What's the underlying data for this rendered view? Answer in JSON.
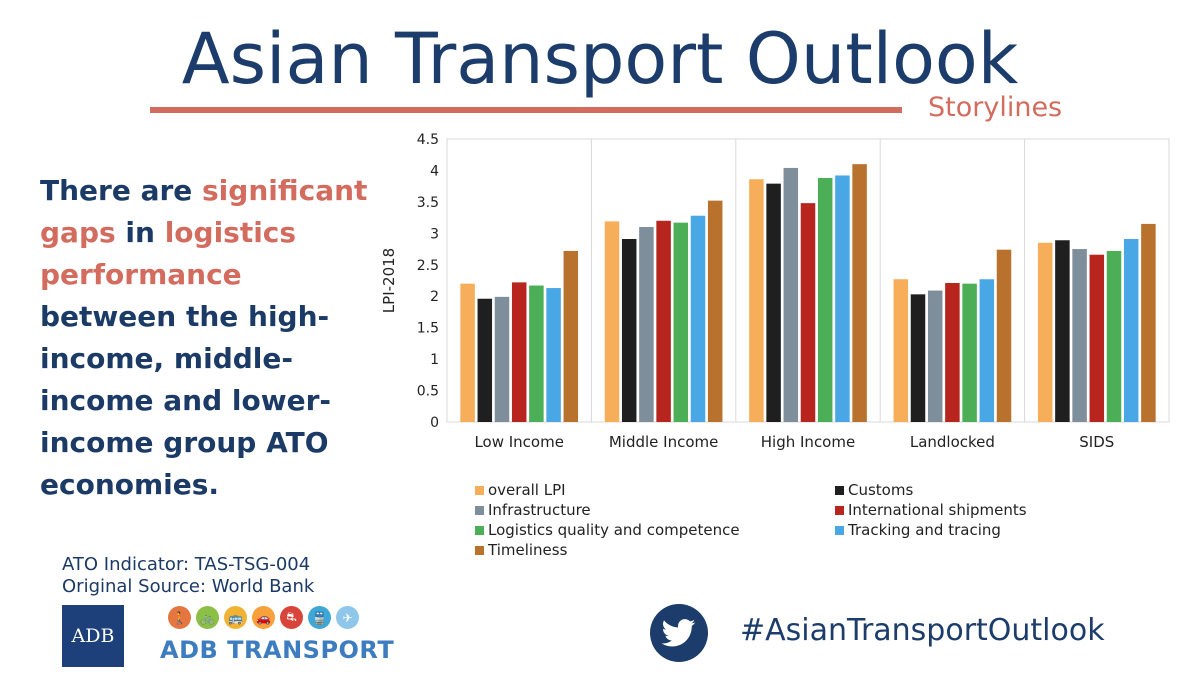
{
  "header": {
    "title": "Asian Transport Outlook",
    "subtitle": "Storylines"
  },
  "statement": {
    "p1": "There are ",
    "h1": "significant gaps",
    "p2": " in ",
    "h2": "logistics performance",
    "p3": " between the high-income, middle-income and lower-income group ATO economies."
  },
  "source": {
    "indicator": "ATO Indicator: TAS-TSG-004",
    "origin": "Original Source: World Bank"
  },
  "logos": {
    "adb": "ADB",
    "adb_transport": "ADB TRANSPORT",
    "mode_icons": [
      {
        "icon": "walk-icon",
        "color": "#e6763f"
      },
      {
        "icon": "bicycle-icon",
        "color": "#8bbf45"
      },
      {
        "icon": "bus-icon",
        "color": "#f2b234"
      },
      {
        "icon": "car-icon",
        "color": "#f6a13c"
      },
      {
        "icon": "road-icon",
        "color": "#d9443a"
      },
      {
        "icon": "train-icon",
        "color": "#3ea7d6"
      },
      {
        "icon": "plane-icon",
        "color": "#8ec7ea"
      }
    ]
  },
  "footer": {
    "hashtag": "#AsianTransportOutlook",
    "twitter_icon": "twitter-bird-icon"
  },
  "chart_data": {
    "type": "bar",
    "title": "",
    "xlabel": "",
    "ylabel": "LPI-2018",
    "ylim": [
      0,
      4.5
    ],
    "yticks": [
      "0",
      "0.5",
      "1",
      "1.5",
      "2",
      "2.5",
      "3",
      "3.5",
      "4",
      "4.5"
    ],
    "grid": "vertical category separators",
    "legend_position": "bottom",
    "categories": [
      "Low Income",
      "Middle Income",
      "High Income",
      "Landlocked",
      "SIDS"
    ],
    "series": [
      {
        "name": "overall LPI",
        "color": "#f6ae5a",
        "values": [
          2.2,
          3.19,
          3.86,
          2.27,
          2.85
        ]
      },
      {
        "name": "Customs",
        "color": "#1f1f1f",
        "values": [
          1.96,
          2.91,
          3.79,
          2.03,
          2.89
        ]
      },
      {
        "name": "Infrastructure",
        "color": "#7f8e9b",
        "values": [
          1.99,
          3.1,
          4.04,
          2.09,
          2.75
        ]
      },
      {
        "name": "International shipments",
        "color": "#b8251f",
        "values": [
          2.22,
          3.2,
          3.48,
          2.21,
          2.66
        ]
      },
      {
        "name": "Logistics quality and competence",
        "color": "#4caf58",
        "values": [
          2.17,
          3.17,
          3.88,
          2.2,
          2.72
        ]
      },
      {
        "name": "Tracking and tracing",
        "color": "#4aa7e6",
        "values": [
          2.13,
          3.28,
          3.92,
          2.27,
          2.91
        ]
      },
      {
        "name": "Timeliness",
        "color": "#b9722e",
        "values": [
          2.72,
          3.52,
          4.1,
          2.74,
          3.15
        ]
      }
    ]
  }
}
